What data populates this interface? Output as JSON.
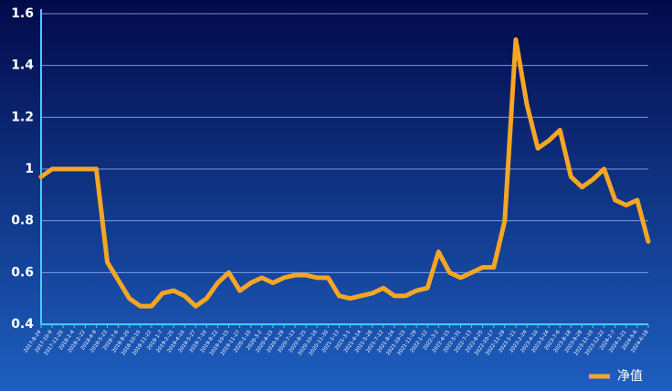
{
  "chart_data": {
    "type": "line",
    "categories": [
      "2017-8-24",
      "2017-10-9",
      "2017-11-20",
      "2018-1-4",
      "2018-2-22",
      "2018-4-9",
      "2018-5-23",
      "2018-7-6",
      "2018-8-20",
      "2018-10-10",
      "2018-11-22",
      "2019-1-7",
      "2019-2-25",
      "2019-4-10",
      "2019-5-27",
      "2019-7-10",
      "2019-8-22",
      "2019-10-15",
      "2019-11-27",
      "2020-1-10",
      "2020-3-2",
      "2020-4-15",
      "2020-5-29",
      "2020-7-13",
      "2020-8-25",
      "2020-10-16",
      "2020-11-30",
      "2021-1-13",
      "2021-3-1",
      "2021-4-14",
      "2021-5-28",
      "2021-7-12",
      "2021-8-24",
      "2021-10-15",
      "2021-11-29",
      "2022-1-12",
      "2022-3-2",
      "2022-4-15",
      "2022-5-31",
      "2022-7-13",
      "2022-8-25",
      "2022-10-17",
      "2022-11-29",
      "2023-1-11",
      "2023-2-24",
      "2023-4-10",
      "2023-5-24",
      "2023-7-6",
      "2023-8-18",
      "2023-9-28",
      "2023-11-10",
      "2023-12-22",
      "2024-2-7",
      "2024-3-21",
      "2024-5-6",
      "2024-6-18"
    ],
    "series": [
      {
        "name": "净值",
        "color": "#f5a623",
        "values": [
          0.97,
          1.0,
          1.0,
          1.0,
          1.0,
          1.0,
          0.64,
          0.57,
          0.5,
          0.47,
          0.47,
          0.52,
          0.53,
          0.51,
          0.47,
          0.5,
          0.56,
          0.6,
          0.53,
          0.56,
          0.58,
          0.56,
          0.58,
          0.59,
          0.59,
          0.58,
          0.58,
          0.51,
          0.5,
          0.51,
          0.52,
          0.54,
          0.51,
          0.51,
          0.53,
          0.54,
          0.68,
          0.6,
          0.58,
          0.6,
          0.62,
          0.62,
          0.8,
          1.5,
          1.25,
          1.08,
          1.11,
          1.15,
          0.97,
          0.93,
          0.96,
          1.0,
          0.88,
          0.86,
          0.88,
          0.72
        ]
      }
    ],
    "ylim": [
      0.4,
      1.6
    ],
    "yticks": [
      0.4,
      0.6,
      0.8,
      1,
      1.2,
      1.4,
      1.6
    ],
    "grid": true,
    "legend": "bottom-right"
  }
}
